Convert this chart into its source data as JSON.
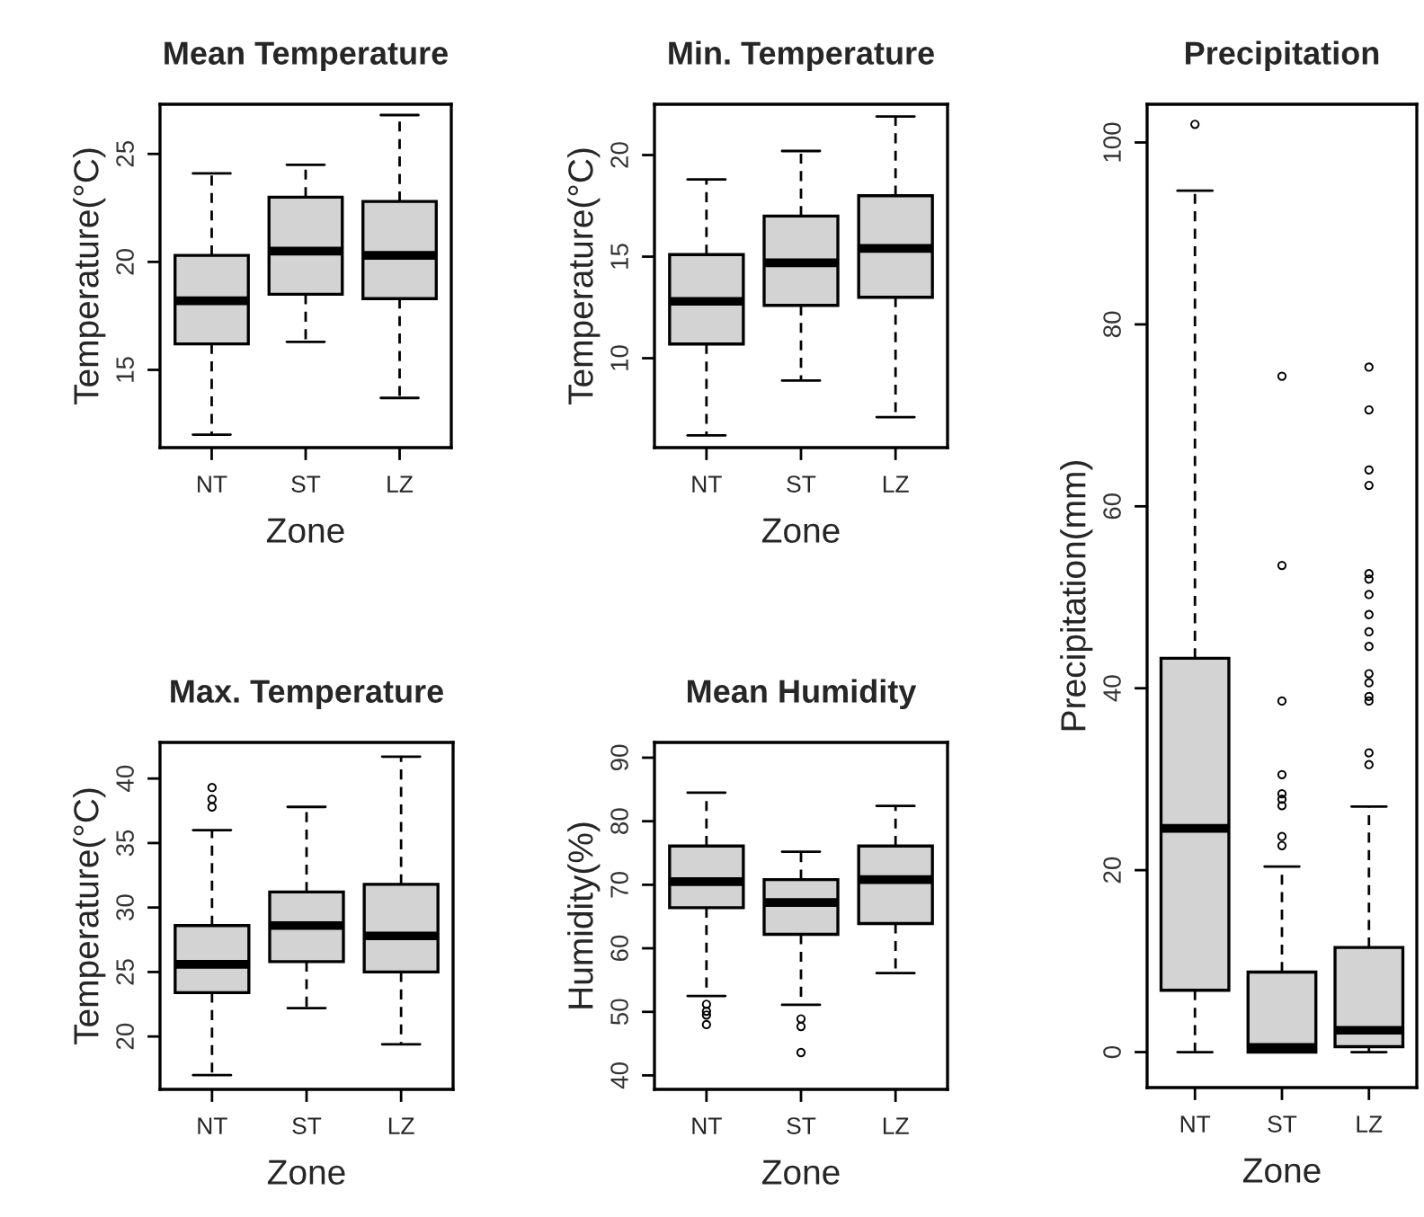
{
  "chart_data": [
    {
      "type": "box",
      "title": "Mean Temperature",
      "xlabel": "Zone",
      "ylabel": "Temperature(°C)",
      "categories": [
        "NT",
        "ST",
        "LZ"
      ],
      "ylim": [
        11.4,
        27.3
      ],
      "yticks": [
        15,
        20,
        25
      ],
      "series": [
        {
          "color": "#d3d3d3",
          "boxes": [
            {
              "low": 12.0,
              "q1": 16.2,
              "median": 18.2,
              "q3": 20.3,
              "high": 24.1
            },
            {
              "low": 16.3,
              "q1": 18.5,
              "median": 20.5,
              "q3": 23.0,
              "high": 24.5
            },
            {
              "low": 13.7,
              "q1": 18.3,
              "median": 20.3,
              "q3": 22.8,
              "high": 26.8
            }
          ]
        }
      ]
    },
    {
      "type": "box",
      "title": "Min. Temperature",
      "xlabel": "Zone",
      "ylabel": "Temperature(°C)",
      "categories": [
        "NT",
        "ST",
        "LZ"
      ],
      "ylim": [
        5.6,
        22.5
      ],
      "yticks": [
        10,
        15,
        20
      ],
      "series": [
        {
          "color": "#d3d3d3",
          "boxes": [
            {
              "low": 6.2,
              "q1": 10.7,
              "median": 12.8,
              "q3": 15.1,
              "high": 18.8
            },
            {
              "low": 8.9,
              "q1": 12.6,
              "median": 14.7,
              "q3": 17.0,
              "high": 20.2
            },
            {
              "low": 7.1,
              "q1": 13.0,
              "median": 15.4,
              "q3": 18.0,
              "high": 21.9
            }
          ]
        }
      ]
    },
    {
      "type": "box",
      "title": "Max. Temperature",
      "xlabel": "Zone",
      "ylabel": "Temperature(°C)",
      "categories": [
        "NT",
        "ST",
        "LZ"
      ],
      "ylim": [
        15.9,
        42.8
      ],
      "yticks": [
        20,
        25,
        30,
        35,
        40
      ],
      "series": [
        {
          "color": "#d3d3d3",
          "boxes": [
            {
              "low": 17.0,
              "q1": 23.4,
              "median": 25.6,
              "q3": 28.6,
              "high": 36.0,
              "outliers": [
                37.8,
                38.4,
                39.3
              ]
            },
            {
              "low": 22.2,
              "q1": 25.8,
              "median": 28.6,
              "q3": 31.2,
              "high": 37.8
            },
            {
              "low": 19.4,
              "q1": 25.0,
              "median": 27.8,
              "q3": 31.8,
              "high": 41.7
            }
          ]
        }
      ]
    },
    {
      "type": "box",
      "title": "Mean Humidity",
      "xlabel": "Zone",
      "ylabel": "Humidity(%)",
      "categories": [
        "NT",
        "ST",
        "LZ"
      ],
      "ylim": [
        37.8,
        92.4
      ],
      "yticks": [
        40,
        50,
        60,
        70,
        80,
        90
      ],
      "series": [
        {
          "color": "#d3d3d3",
          "boxes": [
            {
              "low": 52.5,
              "q1": 66.4,
              "median": 70.5,
              "q3": 76.1,
              "high": 84.5,
              "outliers": [
                48.0,
                49.5,
                50.1,
                51.2
              ]
            },
            {
              "low": 51.1,
              "q1": 62.2,
              "median": 67.2,
              "q3": 70.8,
              "high": 75.2,
              "outliers": [
                43.6,
                47.7,
                48.9
              ]
            },
            {
              "low": 56.1,
              "q1": 63.9,
              "median": 70.8,
              "q3": 76.1,
              "high": 82.4
            }
          ]
        }
      ]
    },
    {
      "type": "box",
      "title": "Precipitation",
      "xlabel": "Zone",
      "ylabel": "Precipitation(mm)",
      "categories": [
        "NT",
        "ST",
        "LZ"
      ],
      "ylim": [
        -3.9,
        104.2
      ],
      "yticks": [
        0,
        20,
        40,
        60,
        80,
        100
      ],
      "series": [
        {
          "color": "#d3d3d3",
          "boxes": [
            {
              "low": 0,
              "q1": 6.8,
              "median": 24.6,
              "q3": 43.3,
              "high": 94.7,
              "outliers": [
                102
              ]
            },
            {
              "low": 0,
              "q1": 0,
              "median": 0.5,
              "q3": 8.8,
              "high": 20.4,
              "outliers": [
                22.7,
                23.7,
                27.1,
                27.8,
                28.4,
                30.5,
                38.6,
                53.5,
                74.3
              ]
            },
            {
              "low": 0,
              "q1": 0.6,
              "median": 2.4,
              "q3": 11.5,
              "high": 27.0,
              "outliers": [
                31.6,
                32.9,
                38.6,
                39.1,
                40.6,
                41.6,
                44.6,
                46.2,
                48.1,
                50.3,
                52.0,
                52.6,
                62.3,
                64.0,
                70.6,
                75.3
              ]
            }
          ]
        }
      ]
    }
  ]
}
